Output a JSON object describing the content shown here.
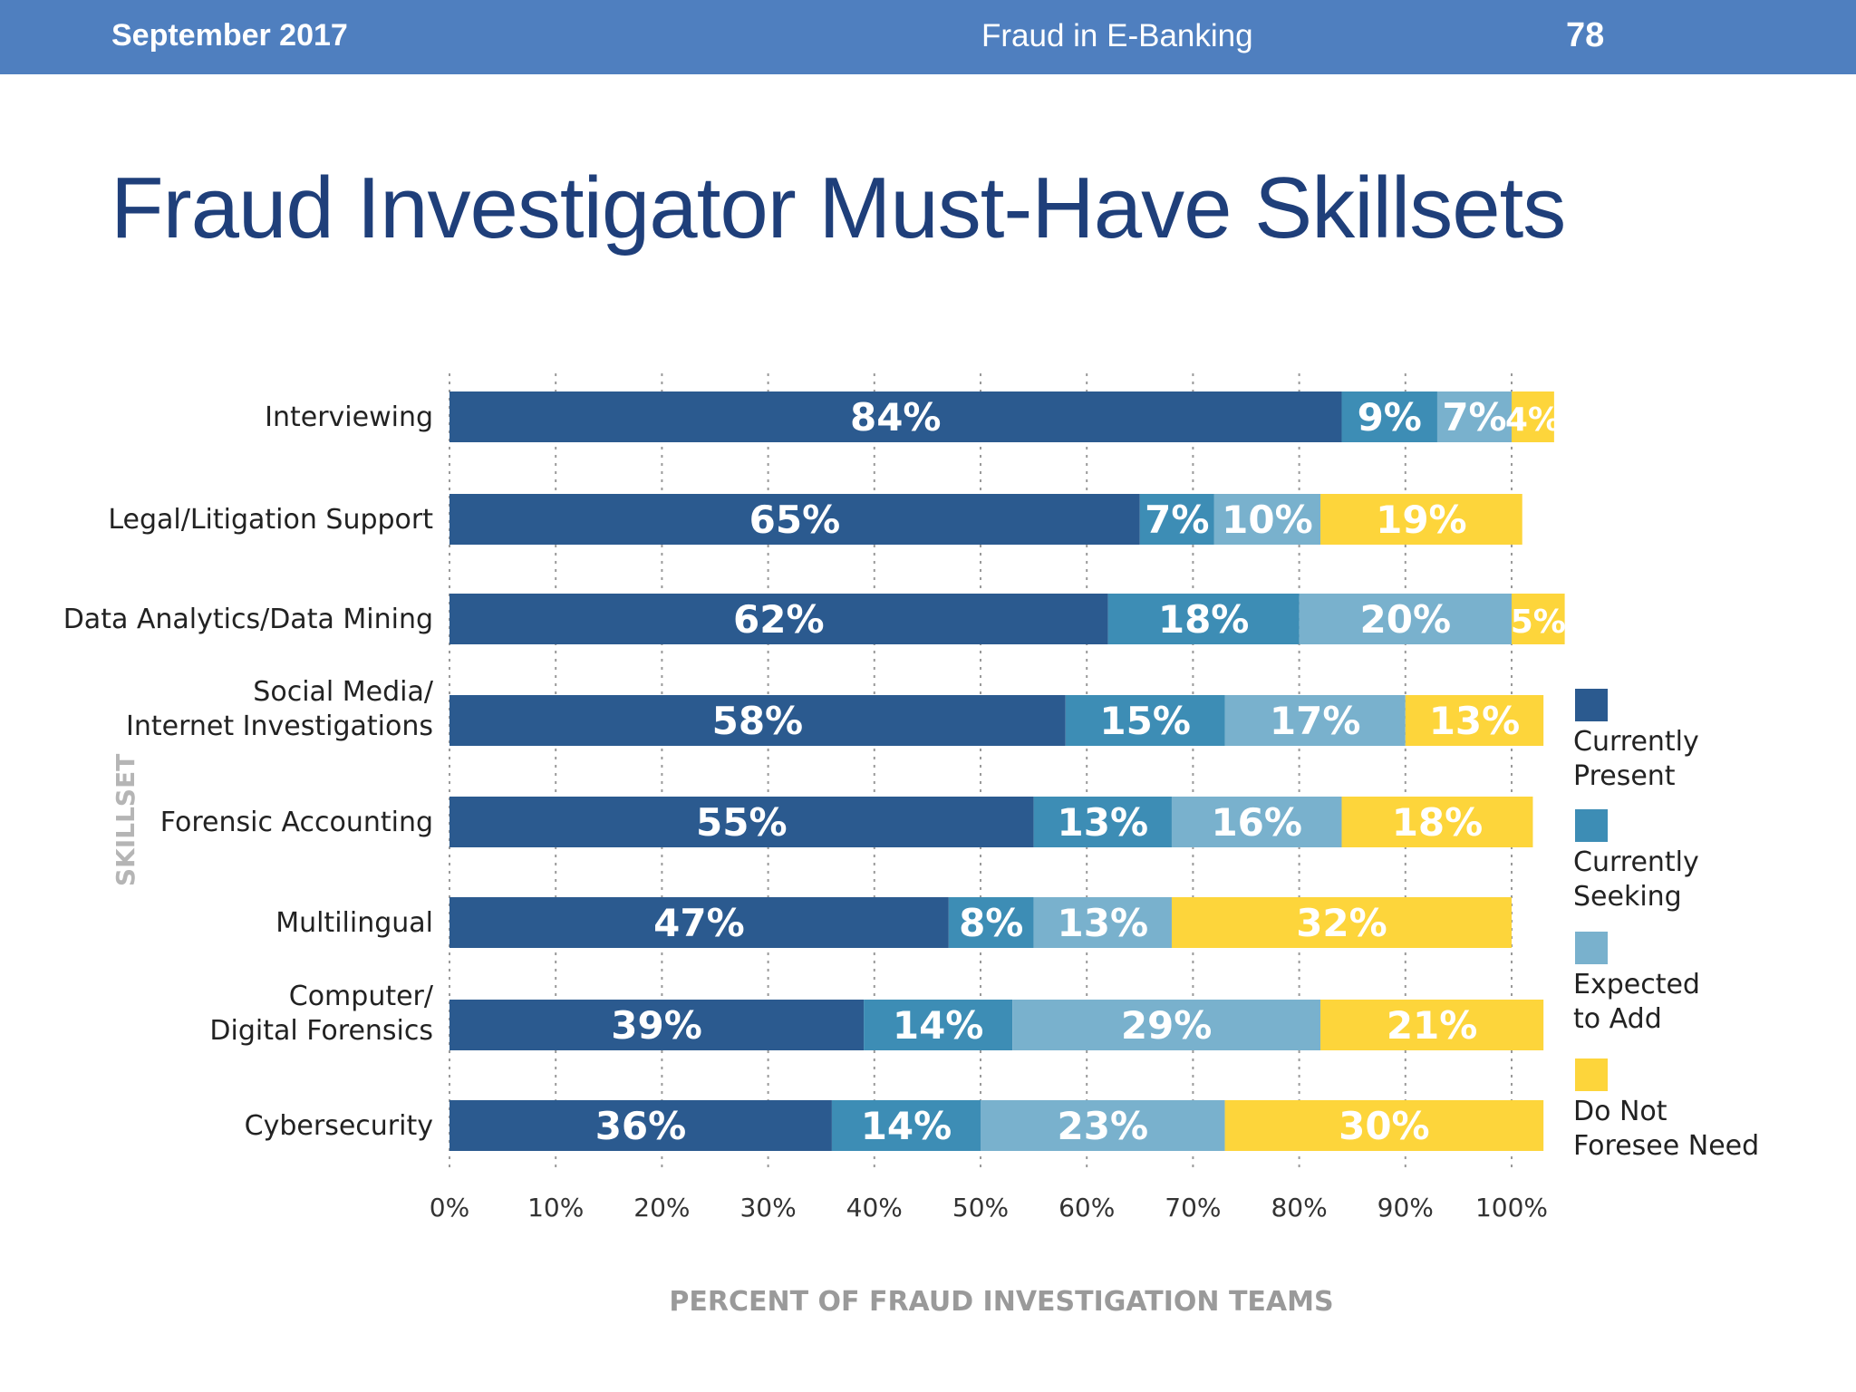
{
  "header": {
    "date": "September 2017",
    "title": "Fraud in E-Banking",
    "page_number": "78"
  },
  "slide_title": "Fraud Investigator Must-Have Skillsets",
  "colors": {
    "header_bar": "#4f7fbf",
    "title": "#1f3f7a",
    "currently_present": "#2b5a8f",
    "currently_seeking": "#3d8db5",
    "expected_to_add": "#79b1cd",
    "do_not_foresee_need": "#fdd53b"
  },
  "chart_data": {
    "type": "bar",
    "orientation": "horizontal",
    "stacked": true,
    "xlabel": "PERCENT OF FRAUD INVESTIGATION TEAMS",
    "ylabel": "SKILLSET",
    "xlim": [
      0,
      100
    ],
    "x_ticks": [
      "0%",
      "10%",
      "20%",
      "30%",
      "40%",
      "50%",
      "60%",
      "70%",
      "80%",
      "90%",
      "100%"
    ],
    "grid": "vertical dashed",
    "legend_position": "right",
    "categories": [
      [
        "Interviewing"
      ],
      [
        "Legal/Litigation Support"
      ],
      [
        "Data Analytics/Data Mining"
      ],
      [
        "Social Media/",
        "Internet Investigations"
      ],
      [
        "Forensic Accounting"
      ],
      [
        "Multilingual"
      ],
      [
        "Computer/",
        "Digital Forensics"
      ],
      [
        "Cybersecurity"
      ]
    ],
    "series": [
      {
        "name": "Currently Present",
        "legend_lines": [
          "Currently",
          "Present"
        ],
        "color": "#2b5a8f",
        "values": [
          84,
          65,
          62,
          58,
          55,
          47,
          39,
          36
        ]
      },
      {
        "name": "Currently Seeking",
        "legend_lines": [
          "Currently",
          "Seeking"
        ],
        "color": "#3d8db5",
        "values": [
          9,
          7,
          18,
          15,
          13,
          8,
          14,
          14
        ]
      },
      {
        "name": "Expected to Add",
        "legend_lines": [
          "Expected",
          "to Add"
        ],
        "color": "#79b1cd",
        "values": [
          7,
          10,
          20,
          17,
          16,
          13,
          29,
          23
        ]
      },
      {
        "name": "Do Not Foresee Need",
        "legend_lines": [
          "Do Not",
          "Foresee Need"
        ],
        "color": "#fdd53b",
        "values": [
          4,
          19,
          5,
          13,
          18,
          32,
          21,
          30
        ]
      }
    ]
  }
}
